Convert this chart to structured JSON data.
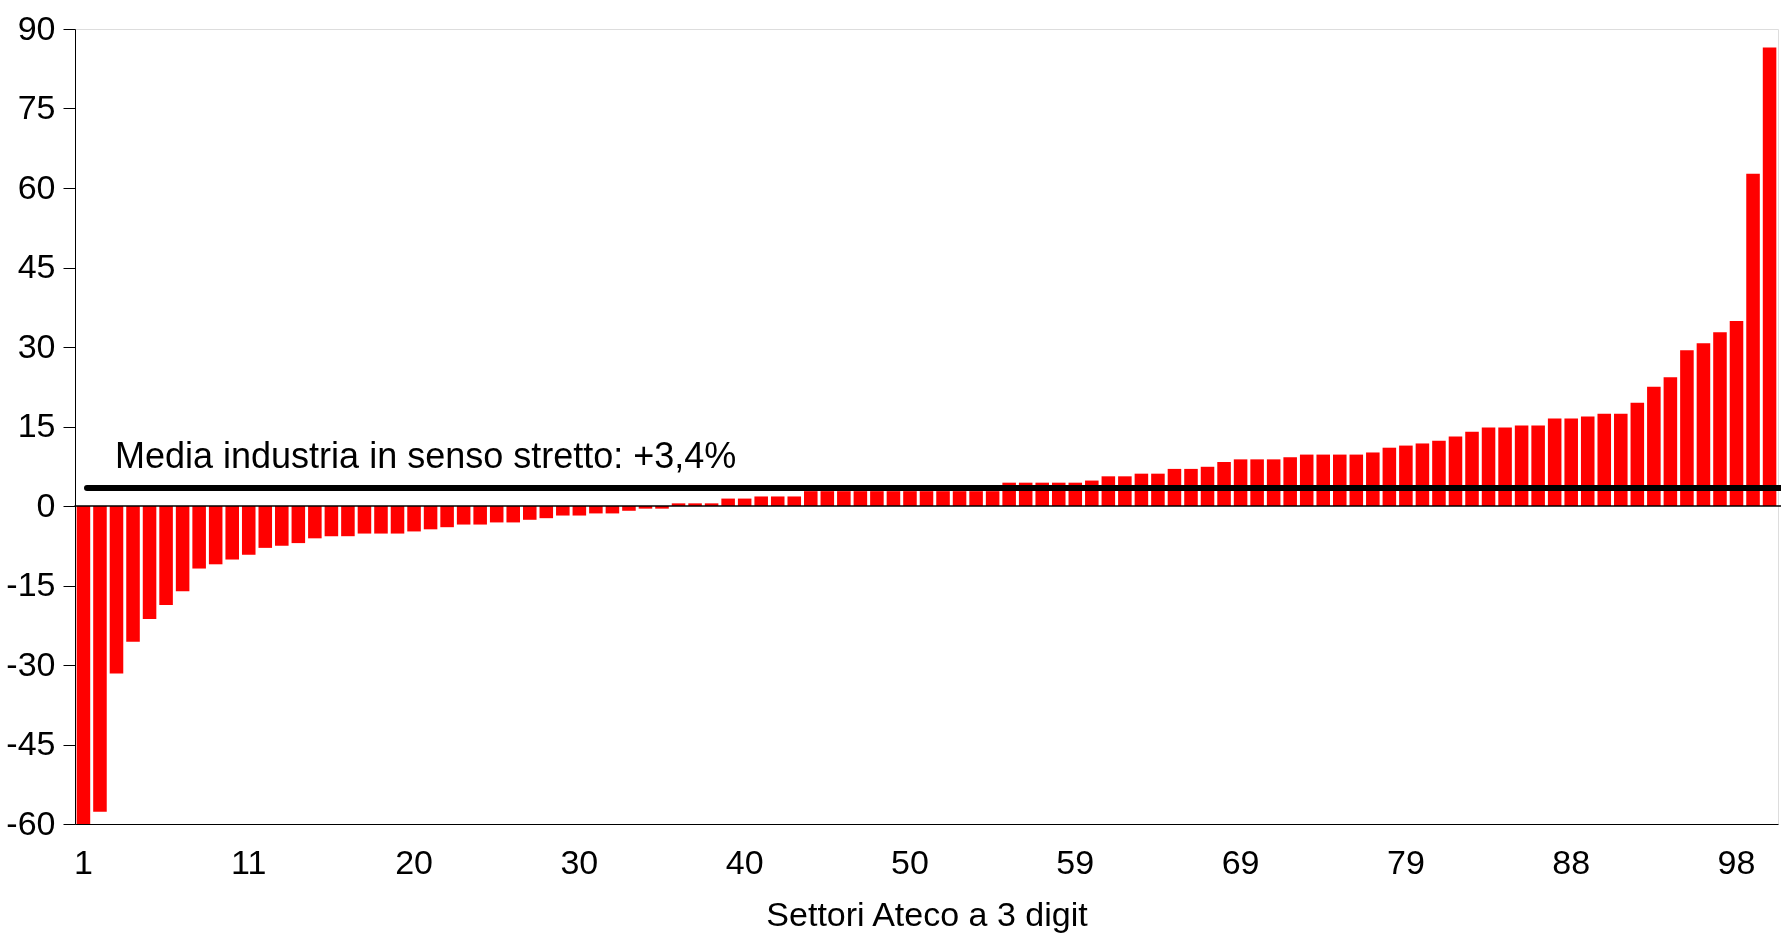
{
  "chart_data": {
    "type": "bar",
    "xlabel": "Settori Ateco a 3 digit",
    "categories": [
      "1",
      null,
      null,
      null,
      null,
      null,
      null,
      null,
      null,
      null,
      "11",
      null,
      null,
      null,
      null,
      null,
      null,
      null,
      null,
      null,
      "20",
      null,
      null,
      null,
      null,
      null,
      null,
      null,
      null,
      null,
      "30",
      null,
      null,
      null,
      null,
      null,
      null,
      null,
      null,
      null,
      "40",
      null,
      null,
      null,
      null,
      null,
      null,
      null,
      null,
      null,
      "50",
      null,
      null,
      null,
      null,
      null,
      null,
      null,
      null,
      null,
      "59",
      null,
      null,
      null,
      null,
      null,
      null,
      null,
      null,
      null,
      "69",
      null,
      null,
      null,
      null,
      null,
      null,
      null,
      null,
      null,
      "79",
      null,
      null,
      null,
      null,
      null,
      null,
      null,
      null,
      null,
      "88",
      null,
      null,
      null,
      null,
      null,
      null,
      null,
      null,
      null,
      "98",
      null,
      null
    ],
    "values": [
      -60,
      -57.7,
      -31.6,
      -25.6,
      -21.3,
      -18.7,
      -16.1,
      -11.8,
      -11.0,
      -10.1,
      -9.2,
      -7.9,
      -7.5,
      -7.0,
      -6.1,
      -5.7,
      -5.7,
      -5.2,
      -5.2,
      -5.2,
      -4.8,
      -4.4,
      -4.0,
      -3.5,
      -3.5,
      -3.1,
      -3.1,
      -2.6,
      -2.3,
      -1.8,
      -1.8,
      -1.4,
      -1.4,
      -0.9,
      -0.5,
      -0.5,
      0.5,
      0.5,
      0.5,
      1.4,
      1.4,
      1.8,
      1.8,
      1.8,
      2.8,
      2.8,
      2.8,
      2.8,
      2.8,
      2.8,
      2.8,
      2.8,
      2.8,
      2.8,
      2.8,
      2.8,
      4.4,
      4.4,
      4.4,
      4.4,
      4.4,
      4.8,
      5.6,
      5.6,
      6.1,
      6.1,
      7.0,
      7.0,
      7.4,
      8.3,
      8.8,
      8.8,
      8.8,
      9.2,
      9.7,
      9.7,
      9.7,
      9.7,
      10.1,
      11.0,
      11.4,
      11.8,
      12.3,
      13.1,
      14.0,
      14.8,
      14.8,
      15.2,
      15.2,
      16.5,
      16.5,
      16.9,
      17.4,
      17.4,
      19.5,
      22.5,
      24.3,
      29.4,
      30.7,
      32.8,
      34.9,
      62.7,
      86.5
    ],
    "color": "#ff0000",
    "ylim": [
      -60,
      90
    ],
    "yticks": [
      -60,
      -45,
      -30,
      -15,
      0,
      15,
      30,
      45,
      60,
      75,
      90
    ],
    "ref_lines": [
      {
        "axis": "y",
        "value": 0,
        "color": "#000000"
      },
      {
        "axis": "y",
        "value": 3.4,
        "label": "Media industria in senso stretto: +3,4%",
        "color": "#000000"
      }
    ],
    "grid": false
  }
}
